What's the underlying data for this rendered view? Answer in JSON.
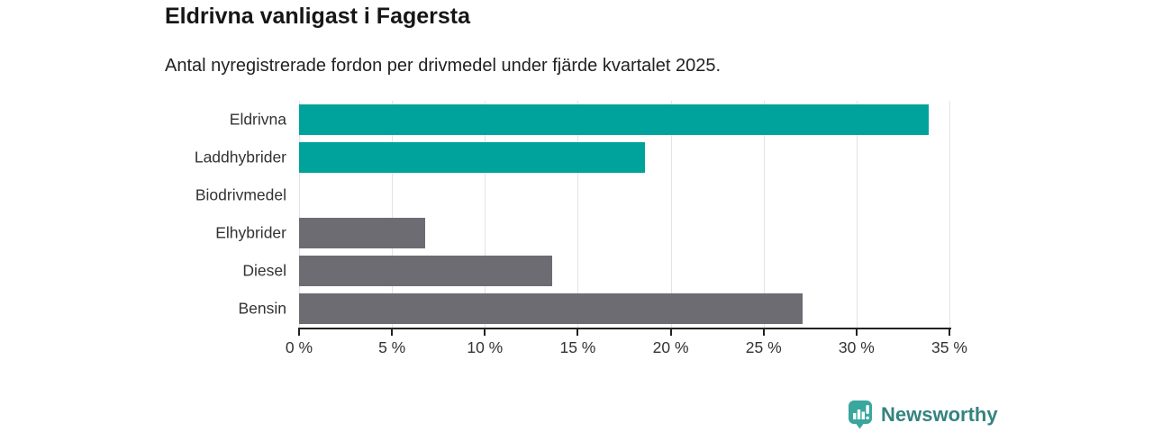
{
  "chart_data": {
    "type": "bar",
    "orientation": "horizontal",
    "title": "Eldrivna vanligast i Fagersta",
    "subtitle": "Antal nyregistrerade fordon per drivmedel under fjärde kvartalet 2025.",
    "categories": [
      "Eldrivna",
      "Laddhybrider",
      "Biodrivmedel",
      "Elhybrider",
      "Diesel",
      "Bensin"
    ],
    "values": [
      33.9,
      18.6,
      0,
      6.8,
      13.6,
      27.1
    ],
    "unit": "%",
    "xlim": [
      0,
      35
    ],
    "xticks": [
      0,
      5,
      10,
      15,
      20,
      25,
      30,
      35
    ],
    "xtick_labels": [
      "0 %",
      "5 %",
      "10 %",
      "15 %",
      "20 %",
      "25 %",
      "30 %",
      "35 %"
    ],
    "bar_colors": [
      "#00a39b",
      "#00a39b",
      "#6c6c72",
      "#6c6c72",
      "#6c6c72",
      "#6c6c72"
    ],
    "grid": true,
    "legend_position": "none"
  },
  "colors": {
    "highlight_teal": "#00a39b",
    "neutral_gray": "#6c6c72",
    "gridline": "#e3e3e3",
    "axis": "#222222",
    "label_text": "#333333",
    "logo_icon": "#3aa69e",
    "logo_text": "#35837f"
  },
  "footer": {
    "brand": "Newsworthy",
    "logo_icon": "newsworthy-bubble-barchart-icon"
  }
}
